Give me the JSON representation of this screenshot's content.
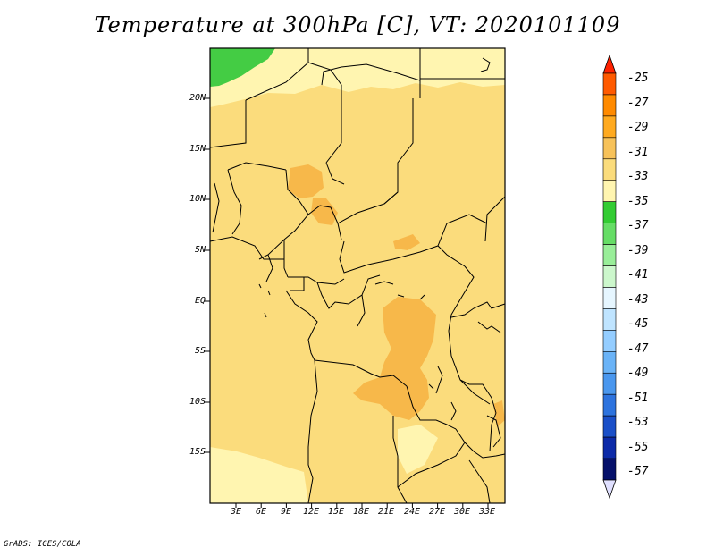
{
  "title": "Temperature at 300hPa [C], VT: 2020101109",
  "credit": "GrADS: IGES/COLA",
  "lat_labels": [
    "20N",
    "15N",
    "10N",
    "5N",
    "EQ",
    "5S",
    "10S",
    "15S"
  ],
  "lon_labels": [
    "3E",
    "6E",
    "9E",
    "12E",
    "15E",
    "18E",
    "21E",
    "24E",
    "27E",
    "30E",
    "33E"
  ],
  "colorbar": {
    "labels": [
      "-25",
      "-27",
      "-29",
      "-31",
      "-33",
      "-35",
      "-37",
      "-39",
      "-41",
      "-43",
      "-45",
      "-47",
      "-49",
      "-51",
      "-53",
      "-55",
      "-57"
    ],
    "colors": [
      "#ff5a00",
      "#ff8a00",
      "#ffaa20",
      "#f7c25a",
      "#fbdc7c",
      "#fff5b0",
      "#33cc33",
      "#66dd66",
      "#99ee99",
      "#ccf7cc",
      "#e6f6ff",
      "#bfe4ff",
      "#94cdff",
      "#6ab3f7",
      "#4a97ee",
      "#2d73de",
      "#1a4fc8",
      "#0c2aa8",
      "#05106a"
    ],
    "top_color": "#ff2200",
    "bottom_color": "#e0e0ff"
  },
  "field_colors": {
    "warm_patch": "#f7b84a",
    "main": "#fbdc7c",
    "light": "#fff5b0",
    "cold_patch": "#44cc44"
  }
}
